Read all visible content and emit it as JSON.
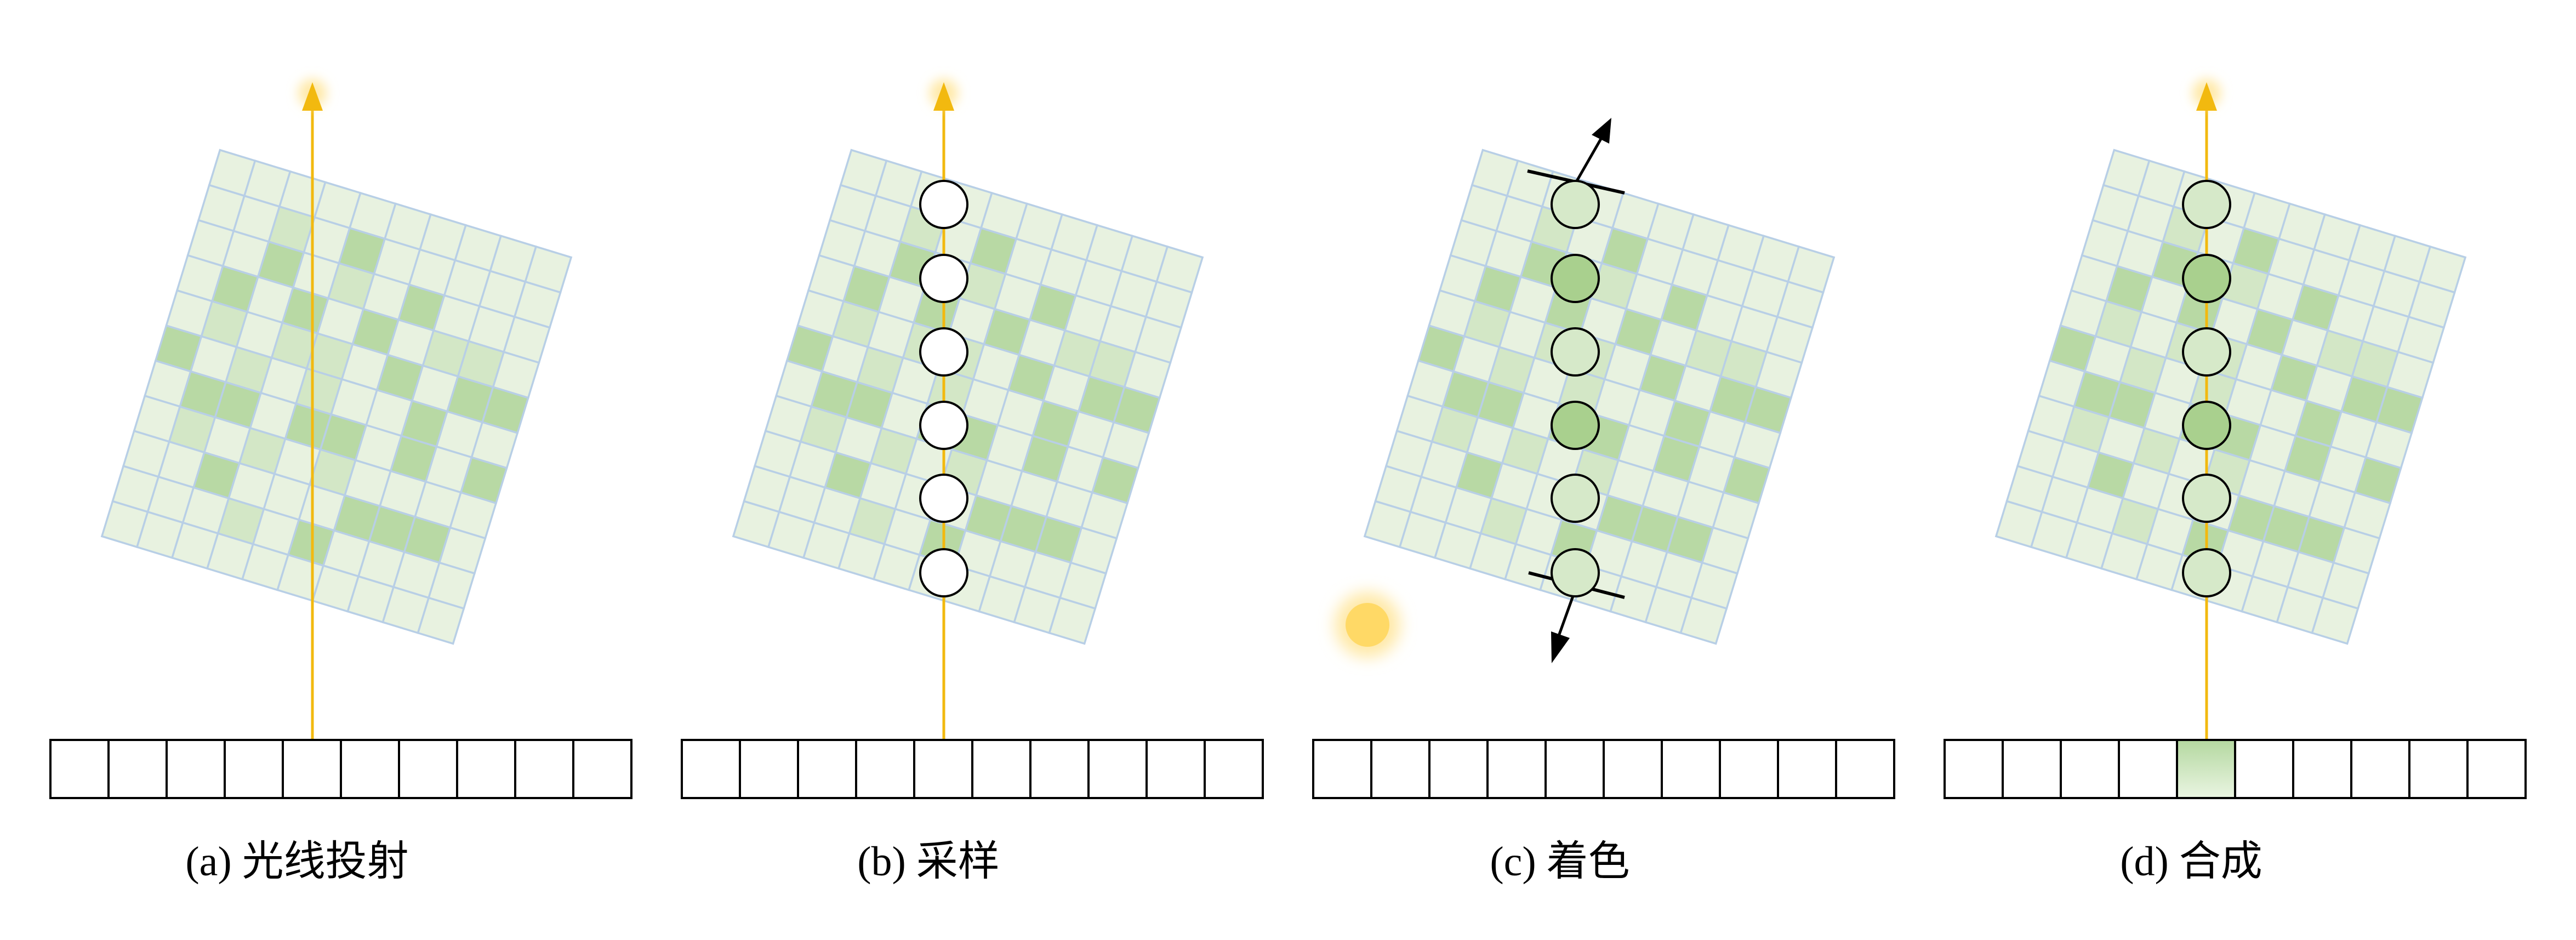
{
  "colors": {
    "cell_light": "#e8f2e0",
    "cell_medium": "#d3e7c6",
    "cell_dark": "#b8d9a4",
    "grid_line": "#b8cfe6",
    "ray": "#f2b90f",
    "ray_glow": "#ffe9a8",
    "light_source": "#ffd966",
    "sample_shaded_light": "#d6e9c9",
    "sample_shaded_dark": "#a9d08e",
    "pixel_highlight": "#b4d8a0",
    "stroke": "#000000"
  },
  "volume_pattern": [
    "0000000000",
    "0010200000",
    "0020102000",
    "0202020110",
    "0101102022",
    "2010100200",
    "0220220202",
    "0101010000",
    "0020002220",
    "0001020000",
    "0000000000"
  ],
  "panels": [
    {
      "id": "a",
      "caption": "(a) 光线投射",
      "show_ray": true,
      "show_samples": false,
      "samples_shaded": false,
      "show_gradient_arrows": false,
      "show_light": false,
      "pixel_highlight_index": -1,
      "icons": [
        "arrow-up-icon"
      ]
    },
    {
      "id": "b",
      "caption": "(b) 采样",
      "show_ray": true,
      "show_samples": true,
      "samples_shaded": false,
      "show_gradient_arrows": false,
      "show_light": false,
      "pixel_highlight_index": -1,
      "icons": [
        "arrow-up-icon",
        "circle-icon"
      ]
    },
    {
      "id": "c",
      "caption": "(c) 着色",
      "show_ray": false,
      "show_samples": true,
      "samples_shaded": true,
      "show_gradient_arrows": true,
      "show_light": true,
      "pixel_highlight_index": -1,
      "icons": [
        "arrow-up-icon",
        "arrow-down-icon",
        "sun-icon",
        "circle-icon"
      ]
    },
    {
      "id": "d",
      "caption": "(d) 合成",
      "show_ray": true,
      "show_samples": true,
      "samples_shaded": true,
      "show_gradient_arrows": false,
      "show_light": false,
      "pixel_highlight_index": 4,
      "icons": [
        "arrow-up-icon",
        "circle-icon"
      ]
    }
  ],
  "sample_shades": [
    0,
    1,
    0,
    1,
    0,
    0
  ],
  "pixel_count": 10
}
